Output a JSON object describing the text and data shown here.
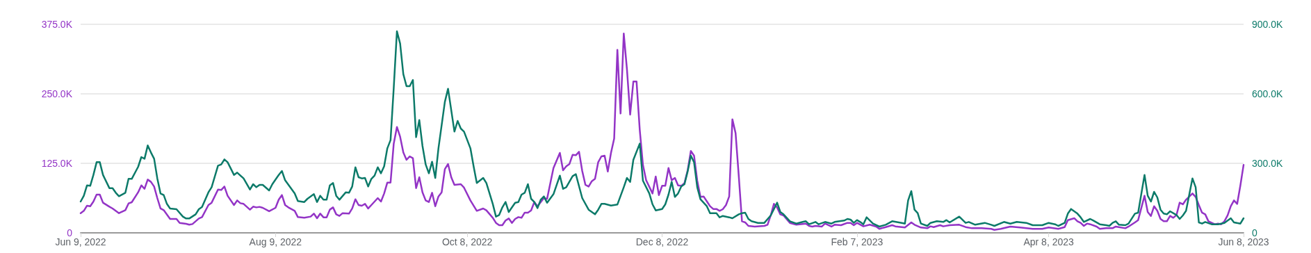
{
  "chart_data": {
    "type": "line",
    "xlim": [
      "2022-06-09",
      "2023-06-08"
    ],
    "xticks": [
      {
        "value": "2022-06-09",
        "label": "Jun 9, 2022"
      },
      {
        "value": "2022-08-09",
        "label": "Aug 9, 2022"
      },
      {
        "value": "2022-10-08",
        "label": "Oct 8, 2022"
      },
      {
        "value": "2022-12-08",
        "label": "Dec 8, 2022"
      },
      {
        "value": "2023-02-07",
        "label": "Feb 7, 2023"
      },
      {
        "value": "2023-04-08",
        "label": "Apr 8, 2023"
      },
      {
        "value": "2023-06-08",
        "label": "Jun 8, 2023"
      }
    ],
    "ylim": [
      0,
      375000
    ],
    "yticks": [
      0,
      {
        "value": 125000,
        "label": "125.0K"
      },
      {
        "value": 250000,
        "label": "250.0K"
      },
      {
        "value": 375000,
        "label": "375.0K"
      }
    ],
    "y2lim": [
      0,
      900000
    ],
    "y2ticks": [
      0,
      {
        "value": 300000,
        "label": "300.0K"
      },
      {
        "value": 600000,
        "label": "600.0K"
      },
      {
        "value": 900000,
        "label": "900.0K"
      }
    ],
    "grid": "y",
    "marker": "none",
    "line_style": "solid",
    "series": [
      {
        "color": "#9334c6",
        "axis": "y",
        "x": [
          "2022-06-09",
          "2022-06-10",
          "2022-06-11",
          "2022-06-12",
          "2022-06-13",
          "2022-06-14",
          "2022-06-15",
          "2022-06-16",
          "2022-06-18",
          "2022-06-19",
          "2022-06-21",
          "2022-06-23",
          "2022-06-24",
          "2022-06-25",
          "2022-06-27",
          "2022-06-28",
          "2022-06-29",
          "2022-06-30",
          "2022-07-01",
          "2022-07-02",
          "2022-07-03",
          "2022-07-04",
          "2022-07-05",
          "2022-07-07",
          "2022-07-09",
          "2022-07-10",
          "2022-07-12",
          "2022-07-13",
          "2022-07-14",
          "2022-07-16",
          "2022-07-17",
          "2022-07-19",
          "2022-07-20",
          "2022-07-22",
          "2022-07-23",
          "2022-07-24",
          "2022-07-25",
          "2022-07-27",
          "2022-07-28",
          "2022-07-29",
          "2022-07-30",
          "2022-08-01",
          "2022-08-02",
          "2022-08-03",
          "2022-08-04",
          "2022-08-05",
          "2022-08-07",
          "2022-08-09",
          "2022-08-10",
          "2022-08-11",
          "2022-08-12",
          "2022-08-13",
          "2022-08-15",
          "2022-08-16",
          "2022-08-18",
          "2022-08-20",
          "2022-08-21",
          "2022-08-22",
          "2022-08-23",
          "2022-08-24",
          "2022-08-25",
          "2022-08-26",
          "2022-08-27",
          "2022-08-28",
          "2022-08-29",
          "2022-08-30",
          "2022-09-01",
          "2022-09-02",
          "2022-09-03",
          "2022-09-04",
          "2022-09-05",
          "2022-09-06",
          "2022-09-07",
          "2022-09-08",
          "2022-09-10",
          "2022-09-11",
          "2022-09-12",
          "2022-09-13",
          "2022-09-14",
          "2022-09-15",
          "2022-09-16",
          "2022-09-17",
          "2022-09-18",
          "2022-09-19",
          "2022-09-20",
          "2022-09-21",
          "2022-09-22",
          "2022-09-23",
          "2022-09-24",
          "2022-09-25",
          "2022-09-26",
          "2022-09-27",
          "2022-09-28",
          "2022-09-29",
          "2022-09-30",
          "2022-10-01",
          "2022-10-02",
          "2022-10-03",
          "2022-10-04",
          "2022-10-06",
          "2022-10-07",
          "2022-10-09",
          "2022-10-11",
          "2022-10-13",
          "2022-10-14",
          "2022-10-16",
          "2022-10-17",
          "2022-10-18",
          "2022-10-19",
          "2022-10-20",
          "2022-10-21",
          "2022-10-22",
          "2022-10-23",
          "2022-10-24",
          "2022-10-25",
          "2022-10-26",
          "2022-10-27",
          "2022-10-28",
          "2022-10-29",
          "2022-10-30",
          "2022-11-01",
          "2022-11-02",
          "2022-11-04",
          "2022-11-06",
          "2022-11-07",
          "2022-11-08",
          "2022-11-09",
          "2022-11-10",
          "2022-11-11",
          "2022-11-12",
          "2022-11-13",
          "2022-11-14",
          "2022-11-15",
          "2022-11-16",
          "2022-11-17",
          "2022-11-18",
          "2022-11-19",
          "2022-11-20",
          "2022-11-21",
          "2022-11-22",
          "2022-11-23",
          "2022-11-24",
          "2022-11-25",
          "2022-11-26",
          "2022-11-27",
          "2022-11-28",
          "2022-11-29",
          "2022-11-30",
          "2022-12-01",
          "2022-12-02",
          "2022-12-03",
          "2022-12-05",
          "2022-12-06",
          "2022-12-07",
          "2022-12-08",
          "2022-12-09",
          "2022-12-10",
          "2022-12-11",
          "2022-12-12",
          "2022-12-13",
          "2022-12-14",
          "2022-12-15",
          "2022-12-16",
          "2022-12-17",
          "2022-12-18",
          "2022-12-19",
          "2022-12-20",
          "2022-12-21",
          "2022-12-23",
          "2022-12-24",
          "2022-12-25",
          "2022-12-26",
          "2022-12-27",
          "2022-12-28",
          "2022-12-29",
          "2022-12-30",
          "2022-12-31",
          "2023-01-01",
          "2023-01-02",
          "2023-01-03",
          "2023-01-04",
          "2023-01-06",
          "2023-01-09",
          "2023-01-10",
          "2023-01-11",
          "2023-01-12",
          "2023-01-13",
          "2023-01-14",
          "2023-01-15",
          "2023-01-17",
          "2023-01-19",
          "2023-01-22",
          "2023-01-23",
          "2023-01-24",
          "2023-01-25",
          "2023-01-27",
          "2023-01-28",
          "2023-01-30",
          "2023-01-31",
          "2023-02-02",
          "2023-02-04",
          "2023-02-05",
          "2023-02-06",
          "2023-02-07",
          "2023-02-09",
          "2023-02-11",
          "2023-02-13",
          "2023-02-14",
          "2023-02-16",
          "2023-02-18",
          "2023-02-19",
          "2023-02-22",
          "2023-02-24",
          "2023-02-25",
          "2023-02-27",
          "2023-03-01",
          "2023-03-02",
          "2023-03-03",
          "2023-03-05",
          "2023-03-06",
          "2023-03-08",
          "2023-03-11",
          "2023-03-13",
          "2023-03-15",
          "2023-03-18",
          "2023-03-21",
          "2023-03-22",
          "2023-03-24",
          "2023-03-27",
          "2023-03-30",
          "2023-04-01",
          "2023-04-03",
          "2023-04-06",
          "2023-04-08",
          "2023-04-11",
          "2023-04-13",
          "2023-04-14",
          "2023-04-16",
          "2023-04-17",
          "2023-04-18",
          "2023-04-19",
          "2023-04-20",
          "2023-04-21",
          "2023-04-23",
          "2023-04-24",
          "2023-04-26",
          "2023-04-28",
          "2023-04-29",
          "2023-05-02",
          "2023-05-03",
          "2023-05-05",
          "2023-05-06",
          "2023-05-08",
          "2023-05-09",
          "2023-05-10",
          "2023-05-11",
          "2023-05-12",
          "2023-05-13",
          "2023-05-14",
          "2023-05-15",
          "2023-05-16",
          "2023-05-17",
          "2023-05-18",
          "2023-05-19",
          "2023-05-20",
          "2023-05-21",
          "2023-05-23",
          "2023-05-24",
          "2023-05-25",
          "2023-05-26",
          "2023-05-27",
          "2023-05-28",
          "2023-05-30",
          "2023-05-31",
          "2023-06-01",
          "2023-06-02",
          "2023-06-03",
          "2023-06-04",
          "2023-06-05",
          "2023-06-06",
          "2023-06-07",
          "2023-06-08"
        ],
        "values": [
          35400,
          39600,
          48800,
          47900,
          56300,
          68800,
          68800,
          54200,
          47100,
          43800,
          35400,
          40800,
          52900,
          55000,
          72900,
          85400,
          79200,
          95800,
          91700,
          83300,
          62500,
          43800,
          40800,
          25000,
          25000,
          17900,
          16300,
          14600,
          15800,
          25800,
          28300,
          50000,
          54200,
          77900,
          77100,
          83300,
          66700,
          50000,
          58300,
          53300,
          52100,
          41700,
          47100,
          45800,
          46700,
          45000,
          38800,
          45000,
          59600,
          67900,
          50000,
          45800,
          39600,
          28300,
          27100,
          29200,
          34600,
          26300,
          34600,
          27900,
          27900,
          41700,
          45800,
          33300,
          30400,
          35400,
          34600,
          43800,
          60400,
          50000,
          48800,
          52100,
          43800,
          50000,
          62500,
          56300,
          70800,
          90400,
          90400,
          160400,
          190400,
          172900,
          144600,
          131300,
          137500,
          134200,
          80400,
          100000,
          72900,
          58300,
          55400,
          72100,
          47900,
          65400,
          72900,
          114600,
          123800,
          100000,
          86300,
          87500,
          81300,
          58300,
          39600,
          43800,
          40400,
          27100,
          17900,
          13800,
          13800,
          22100,
          25800,
          17900,
          25000,
          28300,
          27100,
          36300,
          36300,
          40400,
          55400,
          47900,
          62500,
          61300,
          116700,
          143800,
          112500,
          119600,
          123800,
          140400,
          139600,
          145800,
          111300,
          86300,
          83300,
          92900,
          97100,
          127100,
          137500,
          138800,
          110400,
          143800,
          169600,
          329200,
          214600,
          358300,
          293800,
          212500,
          272100,
          272100,
          185400,
          122100,
          94600,
          70800,
          101300,
          67900,
          84600,
          84600,
          116700,
          94600,
          98800,
          85400,
          84600,
          89600,
          112500,
          147100,
          138800,
          93800,
          64600,
          65400,
          47900,
          42900,
          42900,
          39600,
          42500,
          50000,
          65400,
          204200,
          179200,
          102100,
          20800,
          18800,
          12500,
          11300,
          12500,
          14600,
          31300,
          52100,
          45800,
          33300,
          31300,
          17900,
          14600,
          16700,
          12500,
          11300,
          12500,
          11300,
          16700,
          11300,
          14600,
          13800,
          17900,
          17900,
          13800,
          17900,
          11700,
          14600,
          11300,
          7100,
          10400,
          13800,
          11700,
          9600,
          18800,
          14600,
          9600,
          8300,
          11700,
          10400,
          13800,
          11700,
          13800,
          14600,
          10400,
          8300,
          8300,
          7100,
          5400,
          7100,
          11300,
          9600,
          8300,
          7100,
          7100,
          9600,
          7100,
          10400,
          22900,
          26300,
          20800,
          17900,
          12500,
          16700,
          15400,
          11300,
          7100,
          8300,
          8300,
          11300,
          8300,
          11300,
          18800,
          22900,
          66700,
          37500,
          30400,
          47900,
          39600,
          25000,
          20800,
          20800,
          30400,
          27100,
          32100,
          54200,
          51300,
          59600,
          70800,
          64600,
          50000,
          36300,
          33300,
          20800,
          15400,
          16700,
          15400,
          20800,
          31300,
          47900,
          58300,
          52100,
          85400,
          122100
        ]
      },
      {
        "color": "#0c7a69",
        "axis": "y2",
        "x": [
          "2022-06-09",
          "2022-06-10",
          "2022-06-11",
          "2022-06-12",
          "2022-06-13",
          "2022-06-14",
          "2022-06-15",
          "2022-06-16",
          "2022-06-18",
          "2022-06-19",
          "2022-06-20",
          "2022-06-21",
          "2022-06-23",
          "2022-06-24",
          "2022-06-25",
          "2022-06-27",
          "2022-06-28",
          "2022-06-29",
          "2022-06-30",
          "2022-07-01",
          "2022-07-02",
          "2022-07-03",
          "2022-07-04",
          "2022-07-05",
          "2022-07-06",
          "2022-07-07",
          "2022-07-09",
          "2022-07-11",
          "2022-07-12",
          "2022-07-13",
          "2022-07-15",
          "2022-07-16",
          "2022-07-17",
          "2022-07-19",
          "2022-07-20",
          "2022-07-22",
          "2022-07-23",
          "2022-07-24",
          "2022-07-25",
          "2022-07-27",
          "2022-07-28",
          "2022-07-30",
          "2022-08-01",
          "2022-08-02",
          "2022-08-03",
          "2022-08-04",
          "2022-08-05",
          "2022-08-07",
          "2022-08-08",
          "2022-08-10",
          "2022-08-11",
          "2022-08-12",
          "2022-08-15",
          "2022-08-16",
          "2022-08-18",
          "2022-08-19",
          "2022-08-21",
          "2022-08-22",
          "2022-08-23",
          "2022-08-24",
          "2022-08-25",
          "2022-08-26",
          "2022-08-27",
          "2022-08-28",
          "2022-08-29",
          "2022-08-31",
          "2022-09-01",
          "2022-09-02",
          "2022-09-03",
          "2022-09-04",
          "2022-09-05",
          "2022-09-06",
          "2022-09-07",
          "2022-09-08",
          "2022-09-09",
          "2022-09-10",
          "2022-09-11",
          "2022-09-12",
          "2022-09-13",
          "2022-09-14",
          "2022-09-15",
          "2022-09-16",
          "2022-09-17",
          "2022-09-18",
          "2022-09-19",
          "2022-09-20",
          "2022-09-21",
          "2022-09-22",
          "2022-09-23",
          "2022-09-24",
          "2022-09-25",
          "2022-09-26",
          "2022-09-27",
          "2022-09-28",
          "2022-09-29",
          "2022-10-01",
          "2022-10-02",
          "2022-10-04",
          "2022-10-05",
          "2022-10-06",
          "2022-10-07",
          "2022-10-09",
          "2022-10-10",
          "2022-10-11",
          "2022-10-13",
          "2022-10-14",
          "2022-10-16",
          "2022-10-17",
          "2022-10-18",
          "2022-10-19",
          "2022-10-20",
          "2022-10-21",
          "2022-10-23",
          "2022-10-24",
          "2022-10-25",
          "2022-10-26",
          "2022-10-27",
          "2022-10-28",
          "2022-10-29",
          "2022-10-30",
          "2022-10-31",
          "2022-11-01",
          "2022-11-02",
          "2022-11-04",
          "2022-11-06",
          "2022-11-07",
          "2022-11-08",
          "2022-11-10",
          "2022-11-11",
          "2022-11-13",
          "2022-11-15",
          "2022-11-17",
          "2022-11-18",
          "2022-11-19",
          "2022-11-20",
          "2022-11-22",
          "2022-11-24",
          "2022-11-26",
          "2022-11-27",
          "2022-11-28",
          "2022-11-29",
          "2022-12-01",
          "2022-12-02",
          "2022-12-04",
          "2022-12-05",
          "2022-12-06",
          "2022-12-08",
          "2022-12-09",
          "2022-12-10",
          "2022-12-11",
          "2022-12-12",
          "2022-12-13",
          "2022-12-14",
          "2022-12-15",
          "2022-12-16",
          "2022-12-17",
          "2022-12-18",
          "2022-12-19",
          "2022-12-20",
          "2022-12-22",
          "2022-12-23",
          "2022-12-25",
          "2022-12-26",
          "2022-12-27",
          "2022-12-29",
          "2022-12-30",
          "2023-01-01",
          "2023-01-02",
          "2023-01-03",
          "2023-01-04",
          "2023-01-05",
          "2023-01-07",
          "2023-01-09",
          "2023-01-11",
          "2023-01-13",
          "2023-01-14",
          "2023-01-15",
          "2023-01-17",
          "2023-01-19",
          "2023-01-21",
          "2023-01-22",
          "2023-01-23",
          "2023-01-25",
          "2023-01-26",
          "2023-01-28",
          "2023-01-30",
          "2023-01-31",
          "2023-02-03",
          "2023-02-04",
          "2023-02-05",
          "2023-02-06",
          "2023-02-07",
          "2023-02-08",
          "2023-02-09",
          "2023-02-10",
          "2023-02-12",
          "2023-02-14",
          "2023-02-16",
          "2023-02-18",
          "2023-02-21",
          "2023-02-22",
          "2023-02-23",
          "2023-02-24",
          "2023-02-25",
          "2023-02-26",
          "2023-02-27",
          "2023-03-01",
          "2023-03-02",
          "2023-03-04",
          "2023-03-06",
          "2023-03-07",
          "2023-03-08",
          "2023-03-11",
          "2023-03-13",
          "2023-03-14",
          "2023-03-16",
          "2023-03-19",
          "2023-03-21",
          "2023-03-22",
          "2023-03-25",
          "2023-03-27",
          "2023-03-29",
          "2023-04-01",
          "2023-04-03",
          "2023-04-06",
          "2023-04-08",
          "2023-04-10",
          "2023-04-11",
          "2023-04-13",
          "2023-04-14",
          "2023-04-15",
          "2023-04-17",
          "2023-04-18",
          "2023-04-19",
          "2023-04-21",
          "2023-04-22",
          "2023-04-24",
          "2023-04-26",
          "2023-04-27",
          "2023-04-28",
          "2023-04-29",
          "2023-04-30",
          "2023-05-02",
          "2023-05-03",
          "2023-05-05",
          "2023-05-06",
          "2023-05-08",
          "2023-05-09",
          "2023-05-10",
          "2023-05-11",
          "2023-05-12",
          "2023-05-13",
          "2023-05-14",
          "2023-05-15",
          "2023-05-16",
          "2023-05-18",
          "2023-05-19",
          "2023-05-20",
          "2023-05-21",
          "2023-05-23",
          "2023-05-24",
          "2023-05-25",
          "2023-05-26",
          "2023-05-27",
          "2023-05-29",
          "2023-05-31",
          "2023-06-02",
          "2023-06-04",
          "2023-06-05",
          "2023-06-07",
          "2023-06-08"
        ],
        "values": [
          135000,
          160000,
          205000,
          203000,
          250000,
          305000,
          305000,
          250000,
          193000,
          193000,
          173000,
          158000,
          173000,
          233000,
          233000,
          285000,
          327000,
          320000,
          377000,
          347000,
          320000,
          235000,
          170000,
          163000,
          125000,
          105000,
          102000,
          70000,
          62000,
          62000,
          80000,
          102000,
          112000,
          175000,
          197000,
          290000,
          295000,
          317000,
          305000,
          250000,
          260000,
          235000,
          187000,
          210000,
          197000,
          207000,
          207000,
          183000,
          210000,
          250000,
          267000,
          227000,
          170000,
          137000,
          133000,
          147000,
          167000,
          133000,
          160000,
          143000,
          143000,
          205000,
          215000,
          160000,
          143000,
          175000,
          173000,
          200000,
          283000,
          240000,
          235000,
          237000,
          200000,
          233000,
          247000,
          283000,
          257000,
          287000,
          365000,
          400000,
          625000,
          870000,
          817000,
          685000,
          633000,
          633000,
          660000,
          413000,
          487000,
          375000,
          295000,
          257000,
          307000,
          237000,
          365000,
          565000,
          622000,
          437000,
          483000,
          450000,
          437000,
          365000,
          287000,
          215000,
          237000,
          215000,
          125000,
          70000,
          77000,
          110000,
          133000,
          90000,
          130000,
          133000,
          165000,
          173000,
          210000,
          147000,
          133000,
          107000,
          143000,
          157000,
          130000,
          167000,
          247000,
          190000,
          197000,
          245000,
          253000,
          150000,
          100000,
          80000,
          100000,
          125000,
          125000,
          118000,
          122000,
          197000,
          237000,
          220000,
          315000,
          385000,
          225000,
          170000,
          123000,
          97000,
          103000,
          123000,
          165000,
          220000,
          155000,
          170000,
          200000,
          210000,
          265000,
          333000,
          305000,
          197000,
          145000,
          115000,
          85000,
          85000,
          67000,
          73000,
          67000,
          63000,
          80000,
          85000,
          87000,
          60000,
          50000,
          43000,
          43000,
          75000,
          130000,
          90000,
          80000,
          50000,
          40000,
          47000,
          50000,
          37000,
          47000,
          37000,
          47000,
          40000,
          47000,
          53000,
          60000,
          57000,
          43000,
          55000,
          47000,
          37000,
          67000,
          40000,
          27000,
          35000,
          50000,
          43000,
          40000,
          140000,
          180000,
          100000,
          85000,
          40000,
          30000,
          43000,
          50000,
          47000,
          55000,
          45000,
          70000,
          43000,
          47000,
          35000,
          43000,
          35000,
          30000,
          47000,
          40000,
          47000,
          43000,
          33000,
          33000,
          43000,
          37000,
          30000,
          43000,
          83000,
          103000,
          83000,
          67000,
          47000,
          60000,
          53000,
          37000,
          33000,
          30000,
          43000,
          50000,
          35000,
          33000,
          40000,
          83000,
          87000,
          250000,
          160000,
          135000,
          177000,
          153000,
          100000,
          83000,
          80000,
          93000,
          77000,
          60000,
          75000,
          95000,
          235000,
          197000,
          45000,
          40000,
          47000,
          37000,
          37000,
          43000,
          63000,
          45000,
          40000,
          63000
        ]
      }
    ]
  }
}
